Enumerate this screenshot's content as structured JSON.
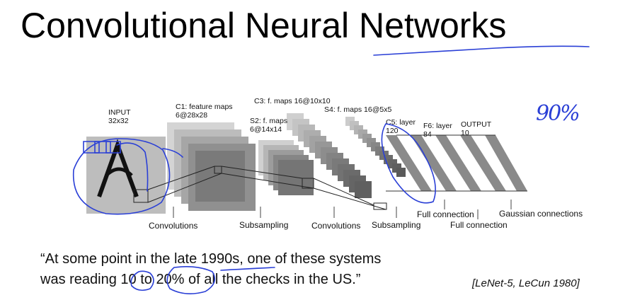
{
  "slide": {
    "title": "Convolutional Neural Networks",
    "quote_line1": "“At some point in the late 1990s, one of these systems",
    "quote_line2": "was reading 10 to 20% of all the checks in the US.”",
    "citation": "[LeNet-5, LeCun 1980]"
  },
  "diagram": {
    "stage_labels": [
      {
        "key": "input",
        "line1": "INPUT",
        "line2": "32x32"
      },
      {
        "key": "c1",
        "line1": "C1: feature maps",
        "line2": "6@28x28"
      },
      {
        "key": "s2",
        "line1": "S2: f. maps",
        "line2": "6@14x14"
      },
      {
        "key": "c3",
        "line1": "C3: f. maps 16@10x10",
        "line2": ""
      },
      {
        "key": "s4",
        "line1": "S4: f. maps 16@5x5",
        "line2": ""
      },
      {
        "key": "c5",
        "line1": "C5: layer",
        "line2": "120"
      },
      {
        "key": "f6",
        "line1": "F6: layer",
        "line2": "84"
      },
      {
        "key": "output",
        "line1": "OUTPUT",
        "line2": "10"
      }
    ],
    "operations": [
      "Convolutions",
      "Subsampling",
      "Convolutions",
      "Subsampling",
      "Full connection",
      "Full connection",
      "Gaussian connections"
    ]
  },
  "annotations": {
    "handwritten_note": "90%",
    "ink_color": "#2a3fd6"
  }
}
